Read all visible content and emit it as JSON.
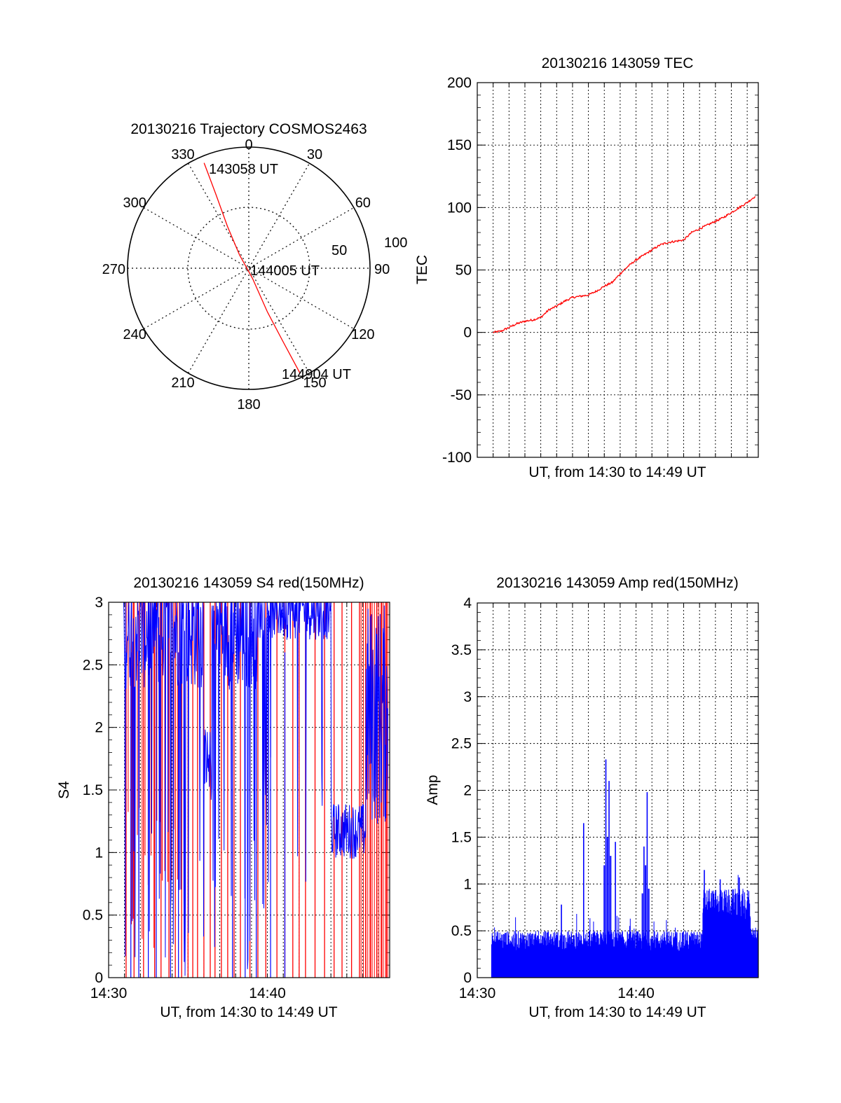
{
  "chart_data": [
    {
      "type": "polar",
      "title": "20130216 Trajectory COSMOS2463",
      "azimuth_labels": [
        "0",
        "30",
        "60",
        "90",
        "120",
        "150",
        "180",
        "210",
        "240",
        "270",
        "300",
        "330"
      ],
      "radial_labels": [
        "50",
        "100"
      ],
      "radial_ticks": [
        50,
        100
      ],
      "annotations": [
        "143058 UT",
        "144005 UT",
        "144904 UT"
      ],
      "trajectory_color": "#ff0000",
      "trajectory": [
        {
          "az": 337,
          "zen": 85
        },
        {
          "az": 336,
          "zen": 60
        },
        {
          "az": 333,
          "zen": 35
        },
        {
          "az": 325,
          "zen": 12
        },
        {
          "az": 160,
          "zen": 8
        },
        {
          "az": 157,
          "zen": 35
        },
        {
          "az": 155,
          "zen": 60
        },
        {
          "az": 154,
          "zen": 87
        }
      ]
    },
    {
      "type": "line",
      "title": "20130216 143059 TEC",
      "xlabel": "UT, from 14:30 to 14:49 UT",
      "ylabel": "TEC",
      "ylim": [
        -100,
        200
      ],
      "yticks": [
        "200",
        "150",
        "100",
        "50",
        "0",
        "-50",
        "-100"
      ],
      "ytick_values": [
        200,
        150,
        100,
        50,
        0,
        -50,
        -100
      ],
      "xlim_minutes": [
        0,
        17.7
      ],
      "grid": true,
      "series": [
        {
          "color": "#ff0000",
          "x": [
            1.0,
            1.5,
            2.0,
            2.5,
            3.0,
            3.5,
            4.0,
            4.5,
            5.0,
            5.5,
            6.0,
            6.5,
            7.0,
            7.5,
            8.0,
            8.5,
            9.0,
            9.5,
            10.0,
            10.5,
            11.0,
            11.5,
            12.0,
            12.5,
            13.0,
            13.5,
            14.0,
            14.5,
            15.0,
            15.5,
            16.0,
            16.5,
            17.0,
            17.5
          ],
          "y": [
            0,
            1,
            4,
            7,
            9,
            10,
            12,
            18,
            21,
            25,
            28,
            29,
            30,
            33,
            37,
            40,
            47,
            53,
            58,
            62,
            66,
            70,
            72,
            73,
            74,
            80,
            83,
            86,
            89,
            92,
            96,
            100,
            104,
            109
          ]
        }
      ]
    },
    {
      "type": "line",
      "title": "20130216 143059 S4 red(150MHz)",
      "xlabel": "UT, from 14:30 to 14:49 UT",
      "ylabel": "S4",
      "ylim": [
        0,
        3
      ],
      "yticks": [
        "3",
        "2.5",
        "2",
        "1.5",
        "1",
        "0.5",
        "0"
      ],
      "ytick_values": [
        3,
        2.5,
        2,
        1.5,
        1,
        0.5,
        0
      ],
      "xticks": [
        "14:30",
        "14:40"
      ],
      "xtick_values": [
        0,
        10
      ],
      "xlim_minutes": [
        0,
        17.7
      ],
      "grid": true,
      "series": [
        {
          "color": "#0000ff",
          "description_free": true
        },
        {
          "color": "#ff0000",
          "description_free": true
        }
      ]
    },
    {
      "type": "line",
      "title": "20130216 143059 Amp red(150MHz)",
      "xlabel": "UT, from 14:30 to 14:49 UT",
      "ylabel": "Amp",
      "ylim": [
        0,
        4
      ],
      "yticks": [
        "4",
        "3.5",
        "3",
        "2.5",
        "2",
        "1.5",
        "1",
        "0.5",
        "0"
      ],
      "ytick_values": [
        4,
        3.5,
        3,
        2.5,
        2,
        1.5,
        1,
        0.5,
        0
      ],
      "xticks": [
        "14:30",
        "14:40"
      ],
      "xtick_values": [
        0,
        10
      ],
      "xlim_minutes": [
        0,
        17.7
      ],
      "grid": true,
      "series": [
        {
          "color": "#0000ff",
          "peaks": [
            {
              "x": 5.3,
              "y": 0.78
            },
            {
              "x": 6.7,
              "y": 1.65
            },
            {
              "x": 8.1,
              "y": 2.33
            },
            {
              "x": 8.3,
              "y": 2.1
            },
            {
              "x": 8.7,
              "y": 1.45
            },
            {
              "x": 10.5,
              "y": 1.4
            },
            {
              "x": 10.7,
              "y": 1.98
            },
            {
              "x": 14.3,
              "y": 1.15
            },
            {
              "x": 15.3,
              "y": 1.05
            },
            {
              "x": 16.5,
              "y": 1.07
            }
          ]
        }
      ]
    }
  ]
}
